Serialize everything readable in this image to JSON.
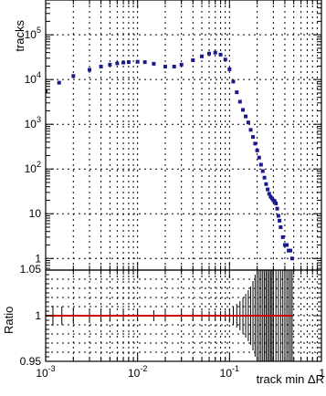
{
  "chart_data": [
    {
      "type": "scatter",
      "ylabel": "tracks",
      "xscale": "log",
      "yscale": "log",
      "xlim": [
        0.001,
        1
      ],
      "ylim": [
        0.55,
        600000
      ],
      "grid": true,
      "y_tick_labels": [
        "1",
        "10",
        "10^2",
        "10^3",
        "10^4",
        "10^5"
      ],
      "series": [
        {
          "color": "#1a1a8c",
          "marker": "square",
          "x": [
            0.001,
            0.0014,
            0.002,
            0.003,
            0.004,
            0.005,
            0.006,
            0.007,
            0.008,
            0.01,
            0.012,
            0.015,
            0.02,
            0.025,
            0.03,
            0.04,
            0.05,
            0.06,
            0.07,
            0.08,
            0.09,
            0.1,
            0.11,
            0.12,
            0.13,
            0.14,
            0.15,
            0.16,
            0.17,
            0.18,
            0.19,
            0.2,
            0.21,
            0.22,
            0.23,
            0.24,
            0.25,
            0.26,
            0.27,
            0.28,
            0.29,
            0.3,
            0.31,
            0.32,
            0.33,
            0.34,
            0.35,
            0.36,
            0.38,
            0.4,
            0.42,
            0.44,
            0.46,
            0.48
          ],
          "y": [
            5500,
            8500,
            12000,
            16500,
            19500,
            21500,
            23000,
            24000,
            24500,
            25000,
            24500,
            22500,
            19500,
            19500,
            21500,
            27000,
            33000,
            38000,
            40000,
            36000,
            28000,
            17000,
            9000,
            5200,
            3200,
            2100,
            1500,
            1100,
            750,
            520,
            370,
            260,
            180,
            125,
            90,
            64,
            46,
            35,
            28,
            24,
            22,
            20,
            19,
            17,
            13,
            9,
            7,
            5,
            3,
            2,
            2,
            1.5,
            1.5,
            1
          ]
        }
      ]
    },
    {
      "type": "scatter",
      "ylabel": "Ratio",
      "xlabel": "track min ΔR",
      "xscale": "log",
      "xlim": [
        0.001,
        1
      ],
      "ylim": [
        0.95,
        1.05
      ],
      "grid": true,
      "x_tick_labels": [
        "10^-3",
        "10^-2",
        "10^-1",
        "1"
      ],
      "y_tick_labels": [
        "0.95",
        "1",
        "1.05"
      ],
      "series": [
        {
          "color": "#cc0000",
          "marker": "line",
          "error_color": "#000000",
          "x": [
            0.001,
            0.0012,
            0.0015,
            0.002,
            0.003,
            0.004,
            0.005,
            0.007,
            0.01,
            0.015,
            0.02,
            0.03,
            0.04,
            0.05,
            0.06,
            0.07,
            0.08,
            0.09,
            0.1,
            0.11,
            0.12,
            0.13,
            0.14,
            0.15,
            0.16,
            0.17,
            0.18,
            0.19,
            0.2,
            0.21,
            0.22,
            0.23,
            0.24,
            0.25,
            0.26,
            0.27,
            0.28,
            0.29,
            0.3,
            0.32,
            0.34,
            0.36,
            0.38,
            0.4,
            0.42,
            0.44,
            0.46,
            0.48
          ],
          "y": [
            1,
            1,
            1,
            1,
            1,
            1,
            1,
            1,
            1,
            1,
            1,
            1,
            1,
            1,
            1,
            1,
            1,
            1,
            1,
            1,
            1,
            1,
            1,
            1,
            1,
            1,
            1,
            1,
            1,
            1,
            1,
            1,
            1,
            1,
            1,
            1,
            1,
            1,
            1,
            1,
            1,
            1,
            1,
            1,
            1,
            1,
            1,
            1
          ],
          "err": [
            0.013,
            0.011,
            0.01,
            0.009,
            0.008,
            0.007,
            0.0065,
            0.006,
            0.006,
            0.006,
            0.0065,
            0.0065,
            0.006,
            0.0055,
            0.005,
            0.005,
            0.005,
            0.0055,
            0.0075,
            0.01,
            0.013,
            0.016,
            0.02,
            0.024,
            0.028,
            0.032,
            0.038,
            0.045,
            0.05,
            0.05,
            0.05,
            0.05,
            0.05,
            0.05,
            0.05,
            0.05,
            0.05,
            0.05,
            0.05,
            0.05,
            0.05,
            0.05,
            0.05,
            0.05,
            0.05,
            0.05,
            0.05,
            0.05
          ]
        }
      ]
    }
  ]
}
